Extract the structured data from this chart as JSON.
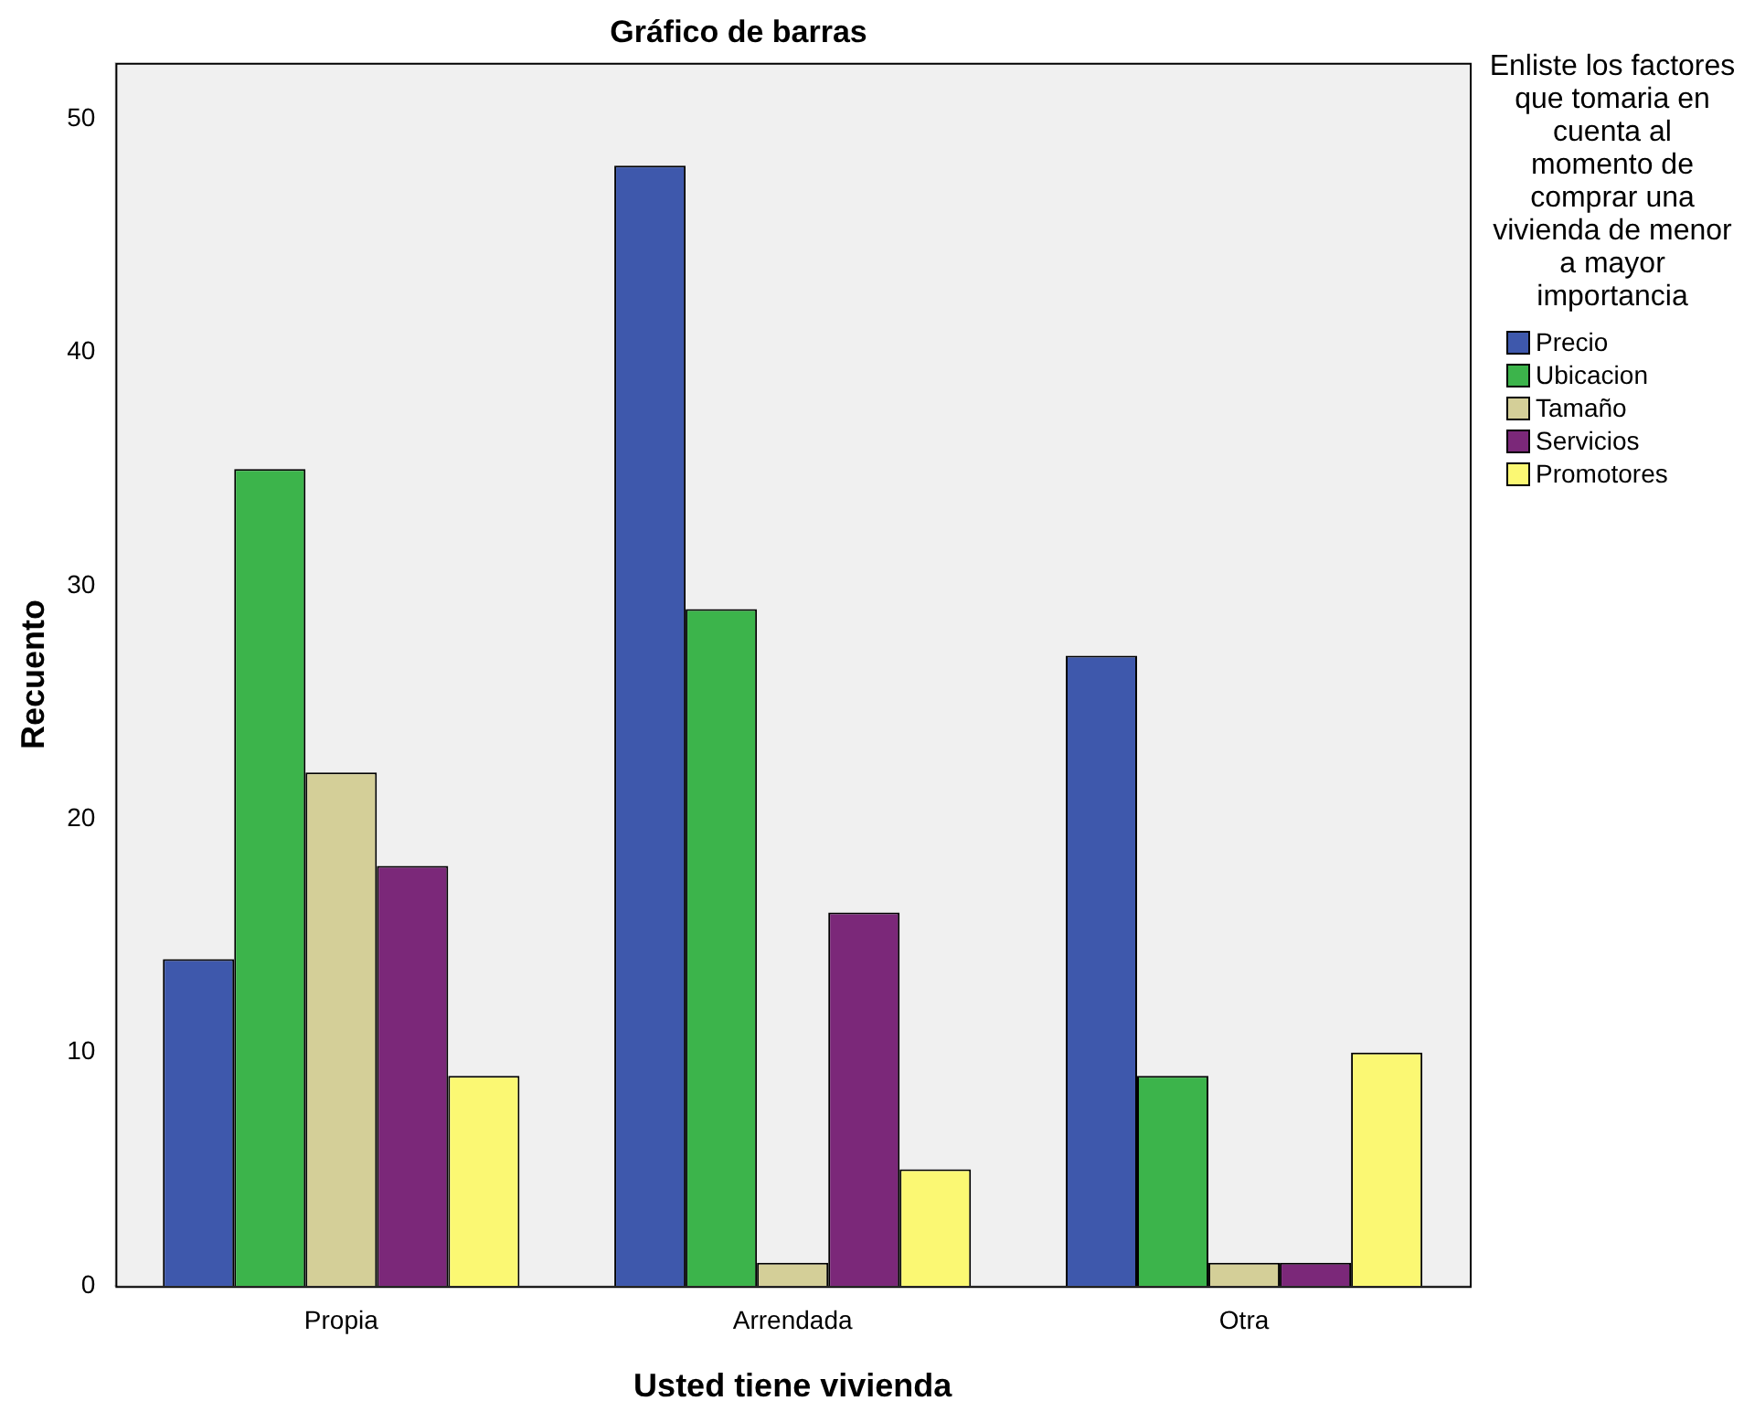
{
  "chart_data": {
    "type": "bar",
    "title": "Gráfico de barras",
    "xlabel": "Usted tiene vivienda",
    "ylabel": "Recuento",
    "legend_title": "Enliste los factores que tomaria en cuenta al momento de comprar una vivienda de menor a mayor importancia",
    "categories": [
      "Propia",
      "Arrendada",
      "Otra"
    ],
    "series": [
      {
        "name": "Precio",
        "color": "#3e58ac",
        "values": [
          14,
          48,
          27
        ]
      },
      {
        "name": "Ubicacion",
        "color": "#3cb44b",
        "values": [
          35,
          29,
          9
        ]
      },
      {
        "name": "Tamaño",
        "color": "#d4cf98",
        "values": [
          22,
          1,
          1
        ]
      },
      {
        "name": "Servicios",
        "color": "#7b2879",
        "values": [
          18,
          16,
          1
        ]
      },
      {
        "name": "Promotores",
        "color": "#fbf873",
        "values": [
          9,
          5,
          10
        ]
      }
    ],
    "ylim": [
      0,
      52.4
    ],
    "yticks": [
      0,
      10,
      20,
      30,
      40,
      50
    ],
    "grid": false,
    "legend": "top right"
  }
}
